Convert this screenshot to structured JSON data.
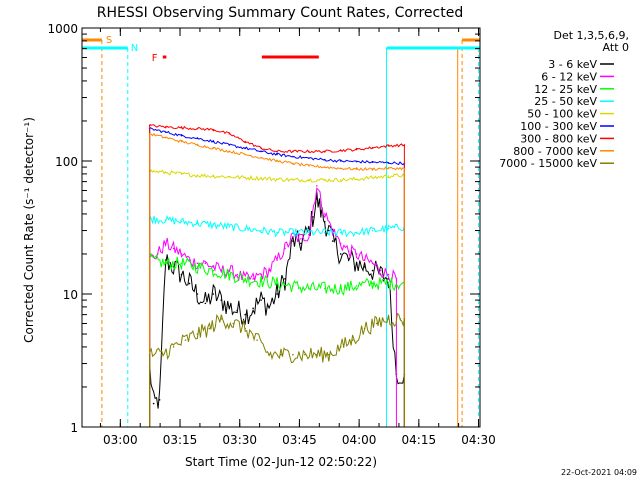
{
  "chart_data": {
    "type": "line",
    "title": "RHESSI Observing Summary Count Rates, Corrected",
    "xlabel": "Start Time (02-Jun-12 02:50:22)",
    "ylabel": "Corrected Count Rate (s⁻¹ detector⁻¹)",
    "x_unit": "minutes since 02:50:22",
    "x_range": [
      0,
      100
    ],
    "y_scale": "log",
    "y_range": [
      1,
      1000
    ],
    "x_ticks": [
      {
        "value": 9.63,
        "label": "03:00"
      },
      {
        "value": 24.63,
        "label": "03:15"
      },
      {
        "value": 39.63,
        "label": "03:30"
      },
      {
        "value": 54.63,
        "label": "03:45"
      },
      {
        "value": 69.63,
        "label": "04:00"
      },
      {
        "value": 84.63,
        "label": "04:15"
      },
      {
        "value": 99.63,
        "label": "04:30"
      }
    ],
    "y_ticks": [
      {
        "value": 1,
        "label": "1"
      },
      {
        "value": 10,
        "label": "10"
      },
      {
        "value": 100,
        "label": "100"
      },
      {
        "value": 1000,
        "label": "1000"
      }
    ],
    "legend_header": [
      "Det 1,3,5,6,9,",
      "Att 0"
    ],
    "legend_placement": "right",
    "series": [
      {
        "name": "3 - 6 keV",
        "color": "#000000",
        "x": [
          17,
          18,
          19.5,
          21,
          23,
          25,
          27,
          29,
          31,
          33,
          35,
          37,
          39,
          41,
          43,
          45,
          47,
          49,
          51,
          53,
          55,
          57,
          58,
          59,
          60,
          61,
          62,
          63,
          65,
          67,
          69,
          71,
          73,
          75,
          77,
          79,
          81
        ],
        "y": [
          2.8,
          1.5,
          1.6,
          18,
          16,
          14,
          12,
          10,
          8.5,
          10,
          9,
          8,
          7.5,
          7,
          7.8,
          9,
          8,
          10,
          13,
          25,
          24,
          30,
          38,
          52,
          42,
          35,
          30,
          25,
          20,
          18,
          17,
          16,
          15,
          14,
          13,
          2.5,
          2.5
        ]
      },
      {
        "name": "6 - 12 keV",
        "color": "#ff00ff",
        "x": [
          17,
          19,
          21,
          23,
          25,
          27,
          29,
          31,
          33,
          35,
          37,
          39,
          41,
          43,
          45,
          47,
          49,
          51,
          53,
          55,
          57,
          59,
          61,
          63,
          65,
          67,
          69,
          71,
          73,
          75,
          77,
          79
        ],
        "y": [
          18,
          20,
          24,
          22,
          20,
          18,
          17,
          17,
          16,
          15,
          15,
          14,
          13,
          13,
          14,
          15,
          18,
          22,
          27,
          26,
          28,
          65,
          40,
          30,
          24,
          21,
          20,
          18,
          17,
          15,
          14,
          13
        ]
      },
      {
        "name": "12 - 25 keV",
        "color": "#00ff00",
        "x": [
          17,
          21,
          25,
          29,
          33,
          37,
          41,
          45,
          49,
          53,
          57,
          61,
          65,
          69,
          73,
          77,
          81
        ],
        "y": [
          18,
          17,
          17,
          16,
          15,
          14,
          13,
          12.5,
          12,
          11.5,
          11,
          11,
          11,
          11.5,
          12,
          12,
          12
        ]
      },
      {
        "name": "25 - 50 keV",
        "color": "#00ffff",
        "x": [
          17,
          21,
          25,
          29,
          33,
          37,
          41,
          45,
          49,
          53,
          57,
          61,
          65,
          69,
          73,
          77,
          81
        ],
        "y": [
          37,
          36,
          35,
          34,
          33,
          32,
          31,
          30,
          29,
          29,
          29,
          29,
          29,
          29,
          30,
          31,
          32
        ]
      },
      {
        "name": "50 - 100 keV",
        "color": "#d9d900",
        "x": [
          17,
          21,
          25,
          29,
          33,
          37,
          41,
          45,
          49,
          53,
          57,
          61,
          65,
          69,
          73,
          77,
          81
        ],
        "y": [
          84,
          82,
          80,
          78,
          77,
          76,
          75,
          74,
          73,
          72,
          72,
          72,
          72,
          73,
          75,
          77,
          78
        ]
      },
      {
        "name": "100 - 300 keV",
        "color": "#0000ff",
        "x": [
          17,
          21,
          25,
          29,
          33,
          37,
          41,
          45,
          49,
          53,
          57,
          61,
          65,
          69,
          73,
          77,
          81
        ],
        "y": [
          175,
          165,
          155,
          148,
          140,
          132,
          125,
          118,
          112,
          108,
          105,
          102,
          100,
          99,
          98,
          97,
          96
        ]
      },
      {
        "name": "300 - 800 keV",
        "color": "#ff0000",
        "x": [
          17,
          21,
          25,
          29,
          33,
          37,
          41,
          45,
          49,
          53,
          57,
          61,
          65,
          69,
          73,
          77,
          81
        ],
        "y": [
          185,
          180,
          178,
          175,
          172,
          160,
          140,
          125,
          118,
          118,
          118,
          118,
          120,
          122,
          126,
          130,
          132
        ]
      },
      {
        "name": "800 - 7000 keV",
        "color": "#ff8800",
        "x": [
          17,
          21,
          25,
          29,
          33,
          37,
          41,
          45,
          49,
          53,
          57,
          61,
          65,
          69,
          73,
          77,
          81
        ],
        "y": [
          160,
          150,
          140,
          132,
          125,
          118,
          112,
          106,
          100,
          96,
          92,
          90,
          88,
          87,
          87,
          88,
          88
        ]
      },
      {
        "name": "7000 - 15000 keV",
        "color": "#808000",
        "x": [
          17,
          20,
          23,
          26,
          29,
          32,
          35,
          38,
          41,
          44,
          47,
          50,
          53,
          56,
          59,
          62,
          65,
          68,
          71,
          74,
          77,
          80,
          81
        ],
        "y": [
          3.5,
          3.5,
          4,
          4.5,
          5,
          5.5,
          6.5,
          6,
          5.5,
          4.5,
          3.5,
          3.5,
          3.5,
          3.5,
          3.5,
          3.5,
          4,
          4.5,
          5.5,
          6,
          6.5,
          6.5,
          6.5
        ]
      }
    ],
    "annotations": {
      "saa_label": "S",
      "night_label": "N",
      "flare_label": "F",
      "saa_intervals": [
        [
          0,
          5
        ],
        [
          95.5,
          100
        ]
      ],
      "night_intervals": [
        [
          0,
          11.5
        ],
        [
          76.5,
          100
        ]
      ],
      "flare_intervals": [
        [
          20.3,
          21.2
        ],
        [
          45.2,
          59.5
        ]
      ],
      "saa_color": "#ff8800",
      "night_color": "#00ffff",
      "flare_color": "#ff0000"
    }
  },
  "footer": {
    "timestamp": "22-Oct-2021 04:09"
  }
}
